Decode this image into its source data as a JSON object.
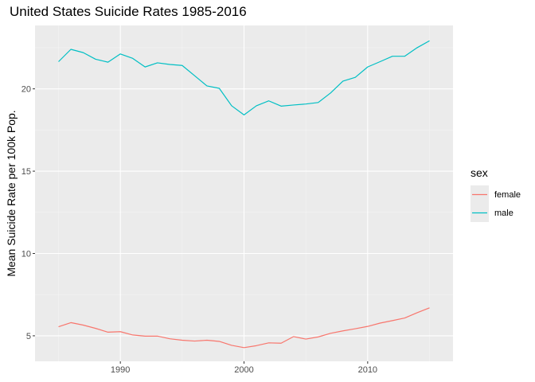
{
  "chart_data": {
    "type": "line",
    "title": "United States Suicide Rates 1985-2016",
    "xlabel": "",
    "ylabel": "Mean Suicide Rate per 100k Pop.",
    "xlim": [
      1983.1,
      2016.9
    ],
    "ylim": [
      3.45,
      23.85
    ],
    "x_ticks": [
      1990,
      2000,
      2010
    ],
    "y_ticks": [
      5,
      10,
      15,
      20
    ],
    "grid": true,
    "legend": {
      "title": "sex",
      "position": "right"
    },
    "x": [
      1985,
      1986,
      1987,
      1988,
      1989,
      1990,
      1991,
      1992,
      1993,
      1994,
      1995,
      1996,
      1997,
      1998,
      1999,
      2000,
      2001,
      2002,
      2003,
      2004,
      2005,
      2006,
      2007,
      2008,
      2009,
      2010,
      2011,
      2012,
      2013,
      2014,
      2015
    ],
    "series": [
      {
        "name": "female",
        "color": "#f8766d",
        "values": [
          5.55,
          5.8,
          5.65,
          5.45,
          5.22,
          5.25,
          5.05,
          4.98,
          4.98,
          4.82,
          4.73,
          4.68,
          4.73,
          4.66,
          4.42,
          4.28,
          4.4,
          4.57,
          4.55,
          4.95,
          4.8,
          4.93,
          5.15,
          5.3,
          5.43,
          5.57,
          5.77,
          5.92,
          6.08,
          6.4,
          6.7
        ]
      },
      {
        "name": "male",
        "color": "#00bfc4",
        "values": [
          21.65,
          22.4,
          22.2,
          21.8,
          21.62,
          22.12,
          21.85,
          21.33,
          21.58,
          21.48,
          21.42,
          20.8,
          20.18,
          20.03,
          18.97,
          18.42,
          18.97,
          19.27,
          18.95,
          19.02,
          19.08,
          19.17,
          19.75,
          20.47,
          20.7,
          21.33,
          21.65,
          21.98,
          21.98,
          22.5,
          22.92
        ]
      }
    ]
  }
}
